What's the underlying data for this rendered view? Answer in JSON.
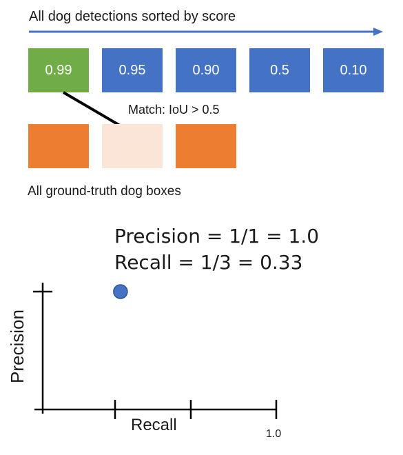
{
  "header": {
    "title": "All dog detections sorted by score"
  },
  "detections": [
    {
      "score": "0.99",
      "matched": true
    },
    {
      "score": "0.95",
      "matched": false
    },
    {
      "score": "0.90",
      "matched": false
    },
    {
      "score": "0.5",
      "matched": false
    },
    {
      "score": "0.10",
      "matched": false
    }
  ],
  "ground_truth": {
    "caption": "All ground-truth dog boxes",
    "boxes": [
      {
        "state": "unmatched"
      },
      {
        "state": "matched"
      },
      {
        "state": "unmatched"
      }
    ]
  },
  "match_label": "Match: IoU > 0.5",
  "metrics": {
    "precision": "Precision = 1/1 = 1.0",
    "recall": "Recall = 1/3 = 0.33"
  },
  "colors": {
    "detection": "#4472c4",
    "detection_matched": "#70ad47",
    "gt_unmatched": "#ed7d31",
    "gt_matched": "#fbe5d6",
    "arrow": "#4472c4",
    "point": "#4472c4"
  },
  "chart_data": {
    "type": "scatter",
    "xlabel": "Recall",
    "ylabel": "Precision",
    "x_ticks": [
      "",
      "",
      "1.0"
    ],
    "xlim": [
      0,
      1.0
    ],
    "ylim": [
      0,
      1.0
    ],
    "series": [
      {
        "x": [
          0.33
        ],
        "y": [
          1.0
        ]
      }
    ]
  }
}
